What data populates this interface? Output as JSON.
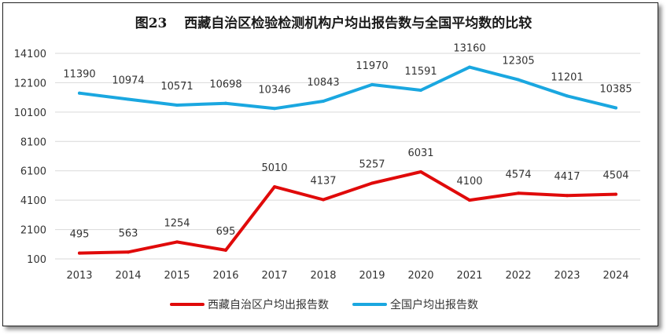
{
  "chart_data": {
    "type": "line",
    "title_prefix": "图23",
    "title": "西藏自治区检验检测机构户均出报告数与全国平均数的比较",
    "categories": [
      "2013",
      "2014",
      "2015",
      "2016",
      "2017",
      "2018",
      "2019",
      "2020",
      "2021",
      "2022",
      "2023",
      "2024"
    ],
    "yticks": [
      100,
      2100,
      4100,
      6100,
      8100,
      10100,
      12100,
      14100
    ],
    "ylim": [
      100,
      14100
    ],
    "grid": true,
    "legend_position": "bottom",
    "series": [
      {
        "name": "西藏自治区户均出报告数",
        "color": "#e00a0a",
        "values": [
          495,
          563,
          1254,
          695,
          5010,
          4137,
          5257,
          6031,
          4100,
          4574,
          4417,
          4504
        ]
      },
      {
        "name": "全国户均出报告数",
        "color": "#1aa7e0",
        "values": [
          11390,
          10974,
          10571,
          10698,
          10346,
          10843,
          11970,
          11591,
          13160,
          12305,
          11201,
          10385
        ]
      }
    ]
  }
}
